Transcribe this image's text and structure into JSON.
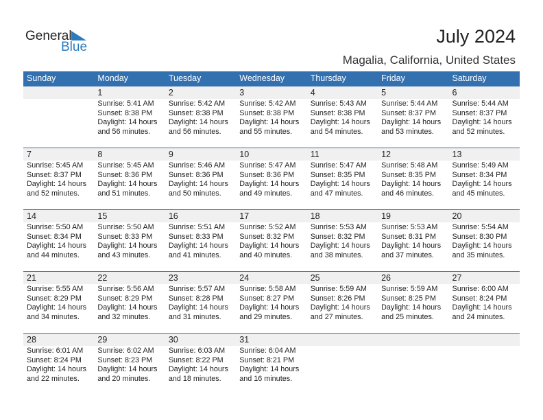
{
  "logo": {
    "line1": "General",
    "line2": "Blue"
  },
  "title": "July 2024",
  "location": "Magalia, California, United States",
  "colors": {
    "header": "#3370b0",
    "logo_blue": "#2a7bbf",
    "day_band": "#f0f0f0"
  },
  "weekdays": [
    "Sunday",
    "Monday",
    "Tuesday",
    "Wednesday",
    "Thursday",
    "Friday",
    "Saturday"
  ],
  "weeks": [
    [
      null,
      {
        "day": "1",
        "sunrise": "Sunrise: 5:41 AM",
        "sunset": "Sunset: 8:38 PM",
        "daylight1": "Daylight: 14 hours",
        "daylight2": "and 56 minutes."
      },
      {
        "day": "2",
        "sunrise": "Sunrise: 5:42 AM",
        "sunset": "Sunset: 8:38 PM",
        "daylight1": "Daylight: 14 hours",
        "daylight2": "and 56 minutes."
      },
      {
        "day": "3",
        "sunrise": "Sunrise: 5:42 AM",
        "sunset": "Sunset: 8:38 PM",
        "daylight1": "Daylight: 14 hours",
        "daylight2": "and 55 minutes."
      },
      {
        "day": "4",
        "sunrise": "Sunrise: 5:43 AM",
        "sunset": "Sunset: 8:38 PM",
        "daylight1": "Daylight: 14 hours",
        "daylight2": "and 54 minutes."
      },
      {
        "day": "5",
        "sunrise": "Sunrise: 5:44 AM",
        "sunset": "Sunset: 8:37 PM",
        "daylight1": "Daylight: 14 hours",
        "daylight2": "and 53 minutes."
      },
      {
        "day": "6",
        "sunrise": "Sunrise: 5:44 AM",
        "sunset": "Sunset: 8:37 PM",
        "daylight1": "Daylight: 14 hours",
        "daylight2": "and 52 minutes."
      }
    ],
    [
      {
        "day": "7",
        "sunrise": "Sunrise: 5:45 AM",
        "sunset": "Sunset: 8:37 PM",
        "daylight1": "Daylight: 14 hours",
        "daylight2": "and 52 minutes."
      },
      {
        "day": "8",
        "sunrise": "Sunrise: 5:45 AM",
        "sunset": "Sunset: 8:36 PM",
        "daylight1": "Daylight: 14 hours",
        "daylight2": "and 51 minutes."
      },
      {
        "day": "9",
        "sunrise": "Sunrise: 5:46 AM",
        "sunset": "Sunset: 8:36 PM",
        "daylight1": "Daylight: 14 hours",
        "daylight2": "and 50 minutes."
      },
      {
        "day": "10",
        "sunrise": "Sunrise: 5:47 AM",
        "sunset": "Sunset: 8:36 PM",
        "daylight1": "Daylight: 14 hours",
        "daylight2": "and 49 minutes."
      },
      {
        "day": "11",
        "sunrise": "Sunrise: 5:47 AM",
        "sunset": "Sunset: 8:35 PM",
        "daylight1": "Daylight: 14 hours",
        "daylight2": "and 47 minutes."
      },
      {
        "day": "12",
        "sunrise": "Sunrise: 5:48 AM",
        "sunset": "Sunset: 8:35 PM",
        "daylight1": "Daylight: 14 hours",
        "daylight2": "and 46 minutes."
      },
      {
        "day": "13",
        "sunrise": "Sunrise: 5:49 AM",
        "sunset": "Sunset: 8:34 PM",
        "daylight1": "Daylight: 14 hours",
        "daylight2": "and 45 minutes."
      }
    ],
    [
      {
        "day": "14",
        "sunrise": "Sunrise: 5:50 AM",
        "sunset": "Sunset: 8:34 PM",
        "daylight1": "Daylight: 14 hours",
        "daylight2": "and 44 minutes."
      },
      {
        "day": "15",
        "sunrise": "Sunrise: 5:50 AM",
        "sunset": "Sunset: 8:33 PM",
        "daylight1": "Daylight: 14 hours",
        "daylight2": "and 43 minutes."
      },
      {
        "day": "16",
        "sunrise": "Sunrise: 5:51 AM",
        "sunset": "Sunset: 8:33 PM",
        "daylight1": "Daylight: 14 hours",
        "daylight2": "and 41 minutes."
      },
      {
        "day": "17",
        "sunrise": "Sunrise: 5:52 AM",
        "sunset": "Sunset: 8:32 PM",
        "daylight1": "Daylight: 14 hours",
        "daylight2": "and 40 minutes."
      },
      {
        "day": "18",
        "sunrise": "Sunrise: 5:53 AM",
        "sunset": "Sunset: 8:32 PM",
        "daylight1": "Daylight: 14 hours",
        "daylight2": "and 38 minutes."
      },
      {
        "day": "19",
        "sunrise": "Sunrise: 5:53 AM",
        "sunset": "Sunset: 8:31 PM",
        "daylight1": "Daylight: 14 hours",
        "daylight2": "and 37 minutes."
      },
      {
        "day": "20",
        "sunrise": "Sunrise: 5:54 AM",
        "sunset": "Sunset: 8:30 PM",
        "daylight1": "Daylight: 14 hours",
        "daylight2": "and 35 minutes."
      }
    ],
    [
      {
        "day": "21",
        "sunrise": "Sunrise: 5:55 AM",
        "sunset": "Sunset: 8:29 PM",
        "daylight1": "Daylight: 14 hours",
        "daylight2": "and 34 minutes."
      },
      {
        "day": "22",
        "sunrise": "Sunrise: 5:56 AM",
        "sunset": "Sunset: 8:29 PM",
        "daylight1": "Daylight: 14 hours",
        "daylight2": "and 32 minutes."
      },
      {
        "day": "23",
        "sunrise": "Sunrise: 5:57 AM",
        "sunset": "Sunset: 8:28 PM",
        "daylight1": "Daylight: 14 hours",
        "daylight2": "and 31 minutes."
      },
      {
        "day": "24",
        "sunrise": "Sunrise: 5:58 AM",
        "sunset": "Sunset: 8:27 PM",
        "daylight1": "Daylight: 14 hours",
        "daylight2": "and 29 minutes."
      },
      {
        "day": "25",
        "sunrise": "Sunrise: 5:59 AM",
        "sunset": "Sunset: 8:26 PM",
        "daylight1": "Daylight: 14 hours",
        "daylight2": "and 27 minutes."
      },
      {
        "day": "26",
        "sunrise": "Sunrise: 5:59 AM",
        "sunset": "Sunset: 8:25 PM",
        "daylight1": "Daylight: 14 hours",
        "daylight2": "and 25 minutes."
      },
      {
        "day": "27",
        "sunrise": "Sunrise: 6:00 AM",
        "sunset": "Sunset: 8:24 PM",
        "daylight1": "Daylight: 14 hours",
        "daylight2": "and 24 minutes."
      }
    ],
    [
      {
        "day": "28",
        "sunrise": "Sunrise: 6:01 AM",
        "sunset": "Sunset: 8:24 PM",
        "daylight1": "Daylight: 14 hours",
        "daylight2": "and 22 minutes."
      },
      {
        "day": "29",
        "sunrise": "Sunrise: 6:02 AM",
        "sunset": "Sunset: 8:23 PM",
        "daylight1": "Daylight: 14 hours",
        "daylight2": "and 20 minutes."
      },
      {
        "day": "30",
        "sunrise": "Sunrise: 6:03 AM",
        "sunset": "Sunset: 8:22 PM",
        "daylight1": "Daylight: 14 hours",
        "daylight2": "and 18 minutes."
      },
      {
        "day": "31",
        "sunrise": "Sunrise: 6:04 AM",
        "sunset": "Sunset: 8:21 PM",
        "daylight1": "Daylight: 14 hours",
        "daylight2": "and 16 minutes."
      },
      null,
      null,
      null
    ]
  ]
}
